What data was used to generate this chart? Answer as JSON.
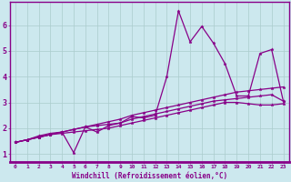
{
  "xlabel": "Windchill (Refroidissement éolien,°C)",
  "bg_color": "#cce8ee",
  "line_color": "#880088",
  "grid_color": "#aacccc",
  "xlim": [
    -0.5,
    23.5
  ],
  "ylim": [
    0.7,
    6.9
  ],
  "xticks": [
    0,
    1,
    2,
    3,
    4,
    5,
    6,
    7,
    8,
    9,
    10,
    11,
    12,
    13,
    14,
    15,
    16,
    17,
    18,
    19,
    20,
    21,
    22,
    23
  ],
  "yticks": [
    1,
    2,
    3,
    4,
    5,
    6
  ],
  "series": [
    [
      1.45,
      1.55,
      1.7,
      1.8,
      1.85,
      1.05,
      2.05,
      1.85,
      2.1,
      2.2,
      2.45,
      2.4,
      2.5,
      4.0,
      6.55,
      5.35,
      5.95,
      5.3,
      4.5,
      3.25,
      3.25,
      4.9,
      5.05,
      3.05
    ],
    [
      1.45,
      1.55,
      1.65,
      1.75,
      1.85,
      1.95,
      2.05,
      2.1,
      2.15,
      2.2,
      2.35,
      2.45,
      2.55,
      2.65,
      2.75,
      2.85,
      2.95,
      3.05,
      3.1,
      3.15,
      3.2,
      3.25,
      3.3,
      3.05
    ],
    [
      1.45,
      1.55,
      1.65,
      1.75,
      1.8,
      1.85,
      1.9,
      1.95,
      2.0,
      2.1,
      2.2,
      2.3,
      2.4,
      2.5,
      2.6,
      2.7,
      2.8,
      2.9,
      3.0,
      3.0,
      2.95,
      2.9,
      2.9,
      2.95
    ],
    [
      1.45,
      1.55,
      1.65,
      1.75,
      1.85,
      1.95,
      2.05,
      2.15,
      2.25,
      2.35,
      2.5,
      2.6,
      2.7,
      2.8,
      2.9,
      3.0,
      3.1,
      3.2,
      3.3,
      3.4,
      3.45,
      3.5,
      3.55,
      3.6
    ]
  ]
}
